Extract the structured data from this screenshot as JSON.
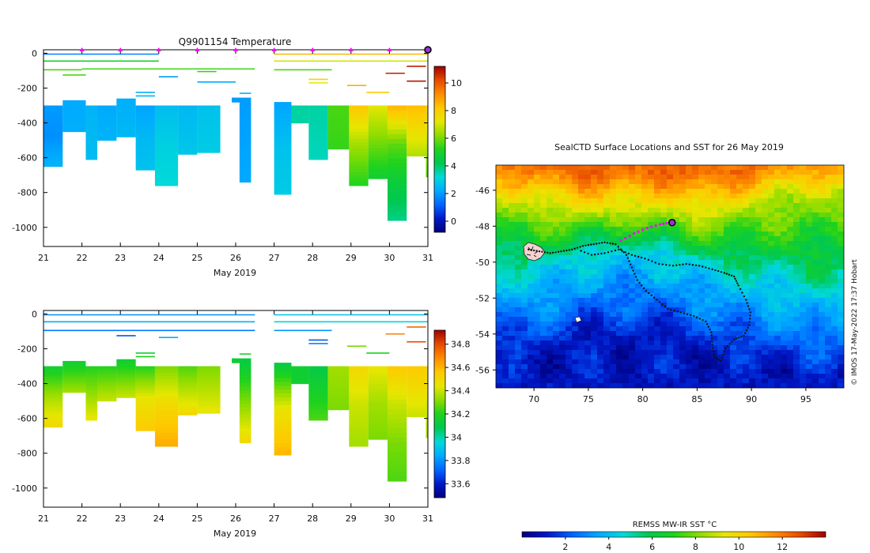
{
  "temp_panel": {
    "title": "Q9901154  Temperature",
    "x_unit_label": "May 2019",
    "x_ticks": [
      "21",
      "22",
      "23",
      "24",
      "25",
      "26",
      "27",
      "28",
      "29",
      "30",
      "31"
    ],
    "y_ticks": [
      "0",
      "-200",
      "-400",
      "-600",
      "-800",
      "-1000"
    ],
    "cbar_ticks": [
      "0",
      "2",
      "4",
      "6",
      "8",
      "10"
    ]
  },
  "sal_panel": {
    "x_unit_label": "May 2019",
    "x_ticks": [
      "21",
      "22",
      "23",
      "24",
      "25",
      "26",
      "27",
      "28",
      "29",
      "30",
      "31"
    ],
    "y_ticks": [
      "0",
      "-200",
      "-400",
      "-600",
      "-800",
      "-1000"
    ],
    "cbar_ticks": [
      "33.6",
      "33.8",
      "34",
      "34.2",
      "34.4",
      "34.6",
      "34.8"
    ]
  },
  "map_panel": {
    "title": "SealCTD Surface Locations and SST for 26 May 2019",
    "lat_ticks": [
      "-46",
      "-48",
      "-50",
      "-52",
      "-54",
      "-56"
    ],
    "lon_ticks": [
      "70",
      "75",
      "80",
      "85",
      "90",
      "95"
    ],
    "cbar_title": "REMSS MW-IR SST °C",
    "cbar_ticks": [
      "2",
      "4",
      "6",
      "8",
      "10",
      "12"
    ],
    "credit": "© IMOS 17-May-2022 17:37 Hobart"
  },
  "colors": {
    "jet": [
      "#00007f",
      "#0019c8",
      "#0066ff",
      "#00aaff",
      "#00d9d9",
      "#00c850",
      "#1ed21e",
      "#8cdc00",
      "#e6e600",
      "#ffc800",
      "#ff8c00",
      "#e64b00",
      "#a00000"
    ],
    "track": "#111111",
    "recent_track": "#ff00ff"
  },
  "chart_data": [
    {
      "type": "heatmap",
      "name": "temperature-section",
      "title": "Q9901154  Temperature",
      "xlabel": "May 2019",
      "xlim": [
        21,
        31
      ],
      "ylim": [
        -1110,
        20
      ],
      "clim": [
        -0.8,
        11.2
      ],
      "colorbar_ticks": [
        0,
        2,
        4,
        6,
        8,
        10
      ],
      "markers_x": [
        22,
        23,
        24,
        25,
        26,
        27,
        28,
        29,
        30
      ],
      "latest_marker_x": 31,
      "profiles": [
        {
          "x0": 21.0,
          "x1": 21.5,
          "bottom": -650,
          "top": -300,
          "v": [
            2.0,
            1.8,
            2.4
          ]
        },
        {
          "x0": 21.5,
          "x1": 22.1,
          "bottom": -450,
          "top": -270,
          "v": [
            2.2,
            2.3
          ]
        },
        {
          "x0": 22.1,
          "x1": 22.4,
          "bottom": -610,
          "top": -300,
          "v": [
            2.4,
            2.6
          ]
        },
        {
          "x0": 22.4,
          "x1": 22.9,
          "bottom": -500,
          "top": -300,
          "v": [
            2.2,
            2.4
          ]
        },
        {
          "x0": 22.9,
          "x1": 23.4,
          "bottom": -480,
          "top": -260,
          "v": [
            2.3,
            2.5
          ]
        },
        {
          "x0": 23.4,
          "x1": 23.9,
          "bottom": -670,
          "top": -300,
          "v": [
            2.1,
            2.5,
            2.7
          ]
        },
        {
          "x0": 23.9,
          "x1": 24.5,
          "bottom": -760,
          "top": -300,
          "v": [
            2.6,
            3.0,
            3.2
          ]
        },
        {
          "x0": 24.5,
          "x1": 25.0,
          "bottom": -580,
          "top": -300,
          "v": [
            2.5,
            2.8
          ]
        },
        {
          "x0": 25.0,
          "x1": 25.6,
          "bottom": -570,
          "top": -300,
          "v": [
            2.7,
            2.9
          ]
        },
        {
          "x0": 25.9,
          "x1": 26.1,
          "bottom": -280,
          "top": -255,
          "v": [
            2.0
          ]
        },
        {
          "x0": 26.1,
          "x1": 26.4,
          "bottom": -740,
          "top": -255,
          "v": [
            2.0,
            2.2
          ]
        },
        {
          "x0": 27.0,
          "x1": 27.45,
          "bottom": -810,
          "top": -280,
          "v": [
            2.1,
            2.7,
            2.9
          ]
        },
        {
          "x0": 27.45,
          "x1": 27.9,
          "bottom": -400,
          "top": -300,
          "v": [
            3.6
          ]
        },
        {
          "x0": 27.9,
          "x1": 28.4,
          "bottom": -610,
          "top": -300,
          "v": [
            3.6,
            3.4
          ]
        },
        {
          "x0": 28.4,
          "x1": 28.95,
          "bottom": -550,
          "top": -300,
          "v": [
            5.6,
            5.4
          ]
        },
        {
          "x0": 28.95,
          "x1": 29.45,
          "bottom": -760,
          "top": -300,
          "v": [
            8.2,
            6.4,
            5.2
          ]
        },
        {
          "x0": 29.45,
          "x1": 29.95,
          "bottom": -720,
          "top": -300,
          "v": [
            7.2,
            6.0,
            4.8
          ]
        },
        {
          "x0": 29.95,
          "x1": 30.45,
          "bottom": -960,
          "top": -300,
          "v": [
            8.6,
            5.8,
            4.6,
            3.8
          ]
        },
        {
          "x0": 30.45,
          "x1": 30.95,
          "bottom": -590,
          "top": -300,
          "v": [
            8.4,
            6.6
          ]
        },
        {
          "x0": 30.95,
          "x1": 31.0,
          "bottom": -710,
          "top": -300,
          "v": [
            8.0,
            5.6
          ]
        }
      ],
      "surface_lines": [
        {
          "x0": 21.0,
          "x1": 24.0,
          "d": -5,
          "v": 1.6
        },
        {
          "x0": 21.0,
          "x1": 24.0,
          "d": -45,
          "v": 5.0
        },
        {
          "x0": 21.0,
          "x1": 22.0,
          "d": -95,
          "v": 5.6
        },
        {
          "x0": 21.5,
          "x1": 22.1,
          "d": -125,
          "v": 5.6
        },
        {
          "x0": 22.0,
          "x1": 26.5,
          "d": -90,
          "v": 5.5
        },
        {
          "x0": 23.4,
          "x1": 23.9,
          "d": -225,
          "v": 2.4
        },
        {
          "x0": 23.4,
          "x1": 23.9,
          "d": -245,
          "v": 2.4
        },
        {
          "x0": 24.0,
          "x1": 24.5,
          "d": -135,
          "v": 2.0
        },
        {
          "x0": 25.0,
          "x1": 25.5,
          "d": -105,
          "v": 5.4
        },
        {
          "x0": 25.0,
          "x1": 26.0,
          "d": -165,
          "v": 2.2
        },
        {
          "x0": 26.1,
          "x1": 26.4,
          "d": -230,
          "v": 2.4
        },
        {
          "x0": 27.0,
          "x1": 31.0,
          "d": -5,
          "v": 8.5
        },
        {
          "x0": 27.0,
          "x1": 31.0,
          "d": -45,
          "v": 7.0
        },
        {
          "x0": 27.0,
          "x1": 28.5,
          "d": -95,
          "v": 5.6
        },
        {
          "x0": 27.9,
          "x1": 28.4,
          "d": -150,
          "v": 7.8
        },
        {
          "x0": 27.9,
          "x1": 28.4,
          "d": -170,
          "v": 7.2
        },
        {
          "x0": 28.9,
          "x1": 29.4,
          "d": -185,
          "v": 8.6
        },
        {
          "x0": 29.4,
          "x1": 30.0,
          "d": -225,
          "v": 8.2
        },
        {
          "x0": 29.9,
          "x1": 30.4,
          "d": -115,
          "v": 10.8
        },
        {
          "x0": 30.45,
          "x1": 30.95,
          "d": -75,
          "v": 10.8
        },
        {
          "x0": 30.45,
          "x1": 30.95,
          "d": -160,
          "v": 10.9
        }
      ]
    },
    {
      "type": "heatmap",
      "name": "salinity-section",
      "title": "",
      "xlabel": "May 2019",
      "xlim": [
        21,
        31
      ],
      "ylim": [
        -1110,
        20
      ],
      "clim": [
        33.48,
        34.92
      ],
      "colorbar_ticks": [
        33.6,
        33.8,
        34.0,
        34.2,
        34.4,
        34.6,
        34.8
      ],
      "profiles": [
        {
          "x0": 21.0,
          "x1": 21.5,
          "bottom": -650,
          "top": -300,
          "v": [
            34.15,
            34.35,
            34.5
          ]
        },
        {
          "x0": 21.5,
          "x1": 22.1,
          "bottom": -450,
          "top": -270,
          "v": [
            34.15,
            34.35
          ]
        },
        {
          "x0": 22.1,
          "x1": 22.4,
          "bottom": -610,
          "top": -300,
          "v": [
            34.2,
            34.45
          ]
        },
        {
          "x0": 22.4,
          "x1": 22.9,
          "bottom": -500,
          "top": -300,
          "v": [
            34.2,
            34.4
          ]
        },
        {
          "x0": 22.9,
          "x1": 23.4,
          "bottom": -480,
          "top": -260,
          "v": [
            34.15,
            34.4
          ]
        },
        {
          "x0": 23.4,
          "x1": 23.9,
          "bottom": -670,
          "top": -300,
          "v": [
            34.2,
            34.45,
            34.55
          ]
        },
        {
          "x0": 23.9,
          "x1": 24.5,
          "bottom": -760,
          "top": -300,
          "v": [
            34.3,
            34.5,
            34.62
          ]
        },
        {
          "x0": 24.5,
          "x1": 25.0,
          "bottom": -580,
          "top": -300,
          "v": [
            34.25,
            34.5
          ]
        },
        {
          "x0": 25.0,
          "x1": 25.6,
          "bottom": -570,
          "top": -300,
          "v": [
            34.3,
            34.45
          ]
        },
        {
          "x0": 25.9,
          "x1": 26.1,
          "bottom": -280,
          "top": -255,
          "v": [
            34.15
          ]
        },
        {
          "x0": 26.1,
          "x1": 26.4,
          "bottom": -740,
          "top": -255,
          "v": [
            34.1,
            34.5
          ]
        },
        {
          "x0": 27.0,
          "x1": 27.45,
          "bottom": -810,
          "top": -280,
          "v": [
            34.1,
            34.45,
            34.6
          ]
        },
        {
          "x0": 27.45,
          "x1": 27.9,
          "bottom": -400,
          "top": -300,
          "v": [
            34.15
          ]
        },
        {
          "x0": 27.9,
          "x1": 28.4,
          "bottom": -610,
          "top": -300,
          "v": [
            34.1,
            34.25
          ]
        },
        {
          "x0": 28.4,
          "x1": 28.95,
          "bottom": -550,
          "top": -300,
          "v": [
            34.35,
            34.3
          ]
        },
        {
          "x0": 28.95,
          "x1": 29.45,
          "bottom": -760,
          "top": -300,
          "v": [
            34.5,
            34.4,
            34.35
          ]
        },
        {
          "x0": 29.45,
          "x1": 29.95,
          "bottom": -720,
          "top": -300,
          "v": [
            34.45,
            34.35,
            34.3
          ]
        },
        {
          "x0": 29.95,
          "x1": 30.45,
          "bottom": -960,
          "top": -300,
          "v": [
            34.55,
            34.4,
            34.3,
            34.25
          ]
        },
        {
          "x0": 30.45,
          "x1": 30.95,
          "bottom": -590,
          "top": -300,
          "v": [
            34.55,
            34.4
          ]
        },
        {
          "x0": 30.95,
          "x1": 31.0,
          "bottom": -710,
          "top": -300,
          "v": [
            34.5,
            34.35
          ]
        }
      ],
      "surface_lines": [
        {
          "x0": 21.0,
          "x1": 26.5,
          "d": -5,
          "v": 33.8
        },
        {
          "x0": 21.0,
          "x1": 26.5,
          "d": -45,
          "v": 33.85
        },
        {
          "x0": 21.0,
          "x1": 26.5,
          "d": -95,
          "v": 33.75
        },
        {
          "x0": 22.9,
          "x1": 23.4,
          "d": -125,
          "v": 33.7
        },
        {
          "x0": 23.4,
          "x1": 23.9,
          "d": -225,
          "v": 34.15
        },
        {
          "x0": 23.4,
          "x1": 23.9,
          "d": -245,
          "v": 34.2
        },
        {
          "x0": 24.0,
          "x1": 24.5,
          "d": -135,
          "v": 33.85
        },
        {
          "x0": 26.1,
          "x1": 26.4,
          "d": -230,
          "v": 34.2
        },
        {
          "x0": 27.0,
          "x1": 31.0,
          "d": -5,
          "v": 33.9
        },
        {
          "x0": 27.0,
          "x1": 31.0,
          "d": -45,
          "v": 33.95
        },
        {
          "x0": 27.0,
          "x1": 28.5,
          "d": -95,
          "v": 33.8
        },
        {
          "x0": 27.9,
          "x1": 28.4,
          "d": -150,
          "v": 33.7
        },
        {
          "x0": 27.9,
          "x1": 28.4,
          "d": -170,
          "v": 33.75
        },
        {
          "x0": 28.9,
          "x1": 29.4,
          "d": -185,
          "v": 34.3
        },
        {
          "x0": 29.4,
          "x1": 30.0,
          "d": -225,
          "v": 34.2
        },
        {
          "x0": 29.9,
          "x1": 30.4,
          "d": -115,
          "v": 34.7
        },
        {
          "x0": 30.45,
          "x1": 30.95,
          "d": -75,
          "v": 34.75
        },
        {
          "x0": 30.45,
          "x1": 30.95,
          "d": -160,
          "v": 34.8
        }
      ]
    },
    {
      "type": "heatmap",
      "name": "sst-map",
      "title": "SealCTD Surface Locations and SST for 26 May 2019",
      "xlabel": "",
      "ylabel": "",
      "xlim": [
        66.5,
        98.5
      ],
      "ylim": [
        -57.0,
        -44.6
      ],
      "clim": [
        0.0,
        14.0
      ],
      "colorbar_title": "REMSS MW-IR SST °C",
      "colorbar_ticks": [
        2,
        4,
        6,
        8,
        10,
        12
      ],
      "sst_fronts": [
        {
          "lon": 66.5,
          "warm": -46.6,
          "cool": -50.4
        },
        {
          "lon": 70.0,
          "warm": -47.0,
          "cool": -50.6
        },
        {
          "lon": 74.0,
          "warm": -47.4,
          "cool": -49.6
        },
        {
          "lon": 78.0,
          "warm": -47.3,
          "cool": -49.3
        },
        {
          "lon": 82.0,
          "warm": -47.4,
          "cool": -49.4
        },
        {
          "lon": 86.0,
          "warm": -47.6,
          "cool": -50.4
        },
        {
          "lon": 90.0,
          "warm": -47.0,
          "cool": -50.8
        },
        {
          "lon": 94.0,
          "warm": -46.4,
          "cool": -51.4
        },
        {
          "lon": 98.5,
          "warm": -46.3,
          "cool": -51.6
        }
      ],
      "track_points": [
        [
          69.5,
          -49.3
        ],
        [
          70.5,
          -49.4
        ],
        [
          71.5,
          -49.5
        ],
        [
          72.5,
          -49.4
        ],
        [
          73.5,
          -49.3
        ],
        [
          74.5,
          -49.1
        ],
        [
          75.5,
          -49.0
        ],
        [
          76.5,
          -48.9
        ],
        [
          77.5,
          -49.0
        ],
        [
          78.5,
          -49.6
        ],
        [
          79.0,
          -50.3
        ],
        [
          79.5,
          -51.0
        ],
        [
          80.3,
          -51.6
        ],
        [
          81.3,
          -52.1
        ],
        [
          82.3,
          -52.6
        ],
        [
          83.5,
          -52.8
        ],
        [
          84.7,
          -53.0
        ],
        [
          85.8,
          -53.3
        ],
        [
          86.3,
          -53.9
        ],
        [
          86.4,
          -54.6
        ],
        [
          86.6,
          -55.3
        ],
        [
          87.2,
          -55.5
        ],
        [
          87.6,
          -54.8
        ],
        [
          88.4,
          -54.3
        ],
        [
          89.3,
          -54.1
        ],
        [
          89.8,
          -53.5
        ],
        [
          89.9,
          -52.8
        ],
        [
          89.5,
          -52.1
        ],
        [
          88.8,
          -51.3
        ],
        [
          88.4,
          -50.8
        ],
        [
          87.5,
          -50.6
        ],
        [
          86.4,
          -50.4
        ],
        [
          85.2,
          -50.2
        ],
        [
          84.0,
          -50.1
        ],
        [
          82.8,
          -50.2
        ],
        [
          81.5,
          -50.1
        ],
        [
          80.2,
          -49.8
        ],
        [
          79.0,
          -49.6
        ],
        [
          77.8,
          -49.3
        ],
        [
          76.5,
          -49.5
        ],
        [
          75.3,
          -49.6
        ],
        [
          74.0,
          -49.3
        ]
      ],
      "recent_track": [
        [
          78.0,
          -48.8
        ],
        [
          79.2,
          -48.4
        ],
        [
          80.4,
          -48.1
        ],
        [
          81.6,
          -47.9
        ],
        [
          82.5,
          -47.8
        ]
      ],
      "latest_position": [
        82.7,
        -47.8
      ]
    }
  ]
}
